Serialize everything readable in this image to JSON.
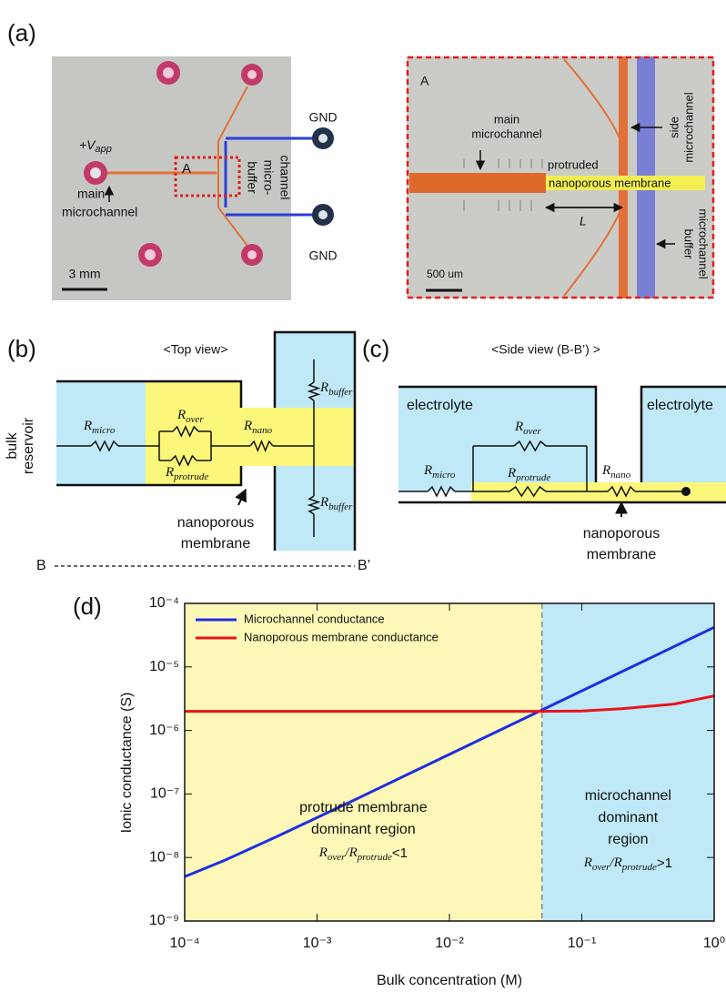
{
  "panel_a": {
    "label": "(a)",
    "left": {
      "v": "+V",
      "v_sub": "app",
      "box": "A",
      "main": [
        "main",
        "microchannel"
      ],
      "buffer": [
        "buffer",
        "micro-",
        "channel"
      ],
      "gnd": [
        "GND",
        "GND"
      ],
      "scale": "3 mm"
    },
    "right": {
      "box": "A",
      "main": [
        "main",
        "microchannel"
      ],
      "protruded": "protruded",
      "membrane": "nanoporous membrane",
      "L": "L",
      "side": [
        "side",
        "microchannel"
      ],
      "buffer": [
        "buffer",
        "microchannel"
      ],
      "scale": "500 um"
    }
  },
  "panel_b": {
    "label": "(b)",
    "title": "<Top view>",
    "reservoir": [
      "bulk",
      "reservoir"
    ],
    "resistors": [
      {
        "symbol": "R",
        "sub": "micro"
      },
      {
        "symbol": "R",
        "sub": "over"
      },
      {
        "symbol": "R",
        "sub": "protrude"
      },
      {
        "symbol": "R",
        "sub": "nano"
      },
      {
        "symbol": "R",
        "sub": "buffer"
      },
      {
        "symbol": "R",
        "sub": "buffer"
      }
    ],
    "membrane": [
      "nanoporous",
      "membrane"
    ],
    "section": [
      "B",
      "B’"
    ]
  },
  "panel_c": {
    "label": "(c)",
    "title": "<Side view (B-B’) >",
    "electrolyte": [
      "electrolyte",
      "electrolyte"
    ],
    "resistors": [
      {
        "symbol": "R",
        "sub": "micro"
      },
      {
        "symbol": "R",
        "sub": "over"
      },
      {
        "symbol": "R",
        "sub": "protrude"
      },
      {
        "symbol": "R",
        "sub": "nano"
      }
    ],
    "membrane": [
      "nanoporous",
      "membrane"
    ]
  },
  "chart_data": {
    "type": "line",
    "panel_label": "(d)",
    "xlabel": "Bulk concentration (M)",
    "ylabel": "Ionic conductance (S)",
    "xscale": "log",
    "yscale": "log",
    "xlim": [
      0.0001,
      1
    ],
    "ylim": [
      1e-09,
      0.0001
    ],
    "xticks": [
      {
        "value": 0.0001,
        "label": "10⁻⁴"
      },
      {
        "value": 0.001,
        "label": "10⁻³"
      },
      {
        "value": 0.01,
        "label": "10⁻²"
      },
      {
        "value": 0.1,
        "label": "10⁻¹"
      },
      {
        "value": 1,
        "label": "10⁰"
      }
    ],
    "yticks": [
      {
        "value": 1e-09,
        "label": "10⁻⁹"
      },
      {
        "value": 1e-08,
        "label": "10⁻⁸"
      },
      {
        "value": 1e-07,
        "label": "10⁻⁷"
      },
      {
        "value": 1e-06,
        "label": "10⁻⁶"
      },
      {
        "value": 1e-05,
        "label": "10⁻⁵"
      },
      {
        "value": 0.0001,
        "label": "10⁻⁴"
      }
    ],
    "x": [
      0.0001,
      0.0002,
      0.0005,
      0.001,
      0.002,
      0.005,
      0.01,
      0.02,
      0.05,
      0.1,
      0.2,
      0.5,
      1
    ],
    "series": [
      {
        "name": "Microchannel conductance",
        "color": "#1f2ee0",
        "values": [
          5e-09,
          9e-09,
          2.15e-08,
          4.25e-08,
          8.4e-08,
          2.1e-07,
          4.2e-07,
          8.4e-07,
          2.1e-06,
          4.2e-06,
          8.4e-06,
          2.1e-05,
          4.2e-05
        ]
      },
      {
        "name": "Nanoporous membrane conductance",
        "color": "#e8141c",
        "values": [
          2e-06,
          2e-06,
          2e-06,
          2e-06,
          2e-06,
          2e-06,
          2e-06,
          2e-06,
          2e-06,
          2.02e-06,
          2.2e-06,
          2.6e-06,
          3.5e-06
        ]
      }
    ],
    "legend": "upper left",
    "boundary": 0.05,
    "regions": [
      {
        "color": "#fdf8b8",
        "lines": [
          "protrude membrane",
          "dominant region"
        ],
        "ratio": {
          "r1": "R",
          "s1": "over",
          "slash": "/",
          "r2": "R",
          "s2": "protrude",
          "cond": "<1"
        }
      },
      {
        "color": "#bfe9f7",
        "lines": [
          "microchannel",
          "dominant",
          "region"
        ],
        "ratio": {
          "r1": "R",
          "s1": "over",
          "slash": "/",
          "r2": "R",
          "s2": "protrude",
          "cond": ">1"
        }
      }
    ]
  }
}
